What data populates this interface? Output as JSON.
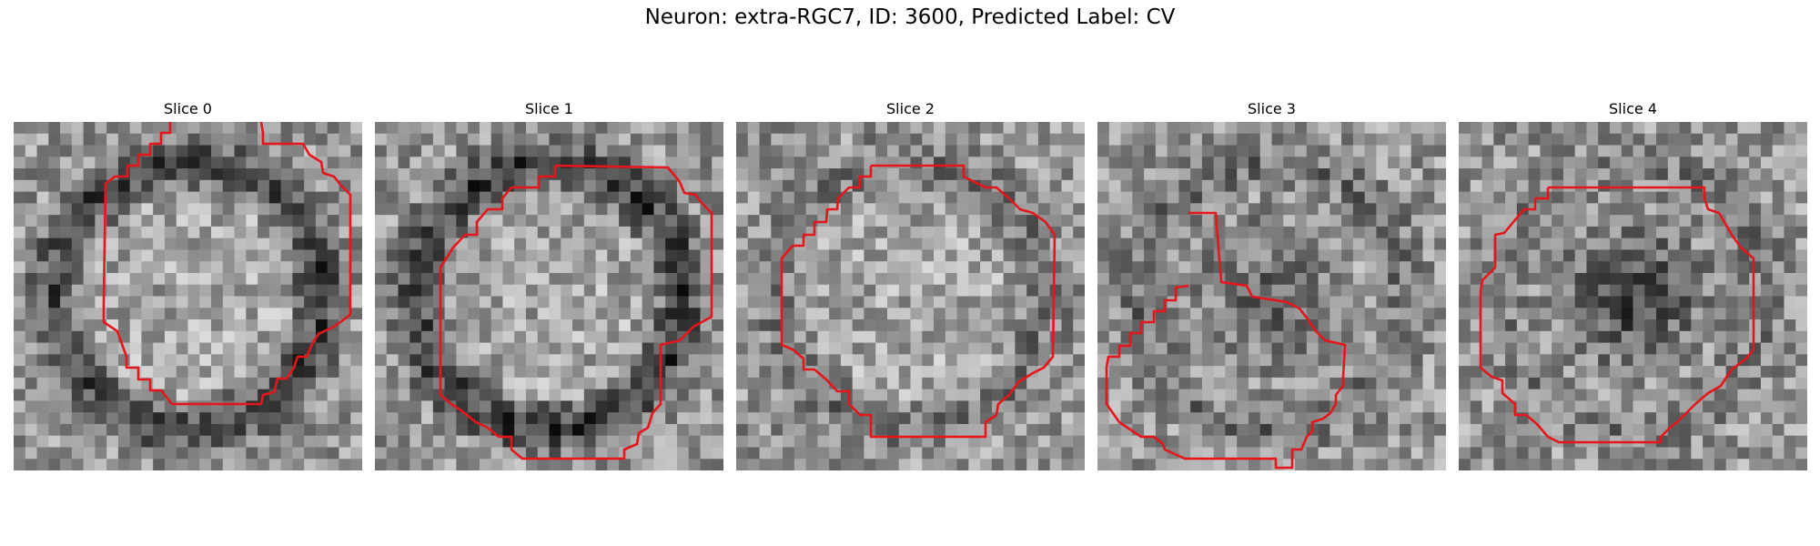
{
  "figure": {
    "title": "Neuron: extra-RGC7, ID: 3600, Predicted Label: CV"
  },
  "panels": [
    {
      "title": "Slice 0",
      "seed": 11,
      "ring": 0.95,
      "dark_center": 0.0
    },
    {
      "title": "Slice 1",
      "seed": 23,
      "ring": 1.0,
      "dark_center": 0.0
    },
    {
      "title": "Slice 2",
      "seed": 37,
      "ring": 0.35,
      "dark_center": 0.0
    },
    {
      "title": "Slice 3",
      "seed": 51,
      "ring": 0.4,
      "dark_center": 0.55
    },
    {
      "title": "Slice 4",
      "seed": 67,
      "ring": 0.3,
      "dark_center": 0.9
    }
  ],
  "colors": {
    "contour": "#e8141c"
  }
}
